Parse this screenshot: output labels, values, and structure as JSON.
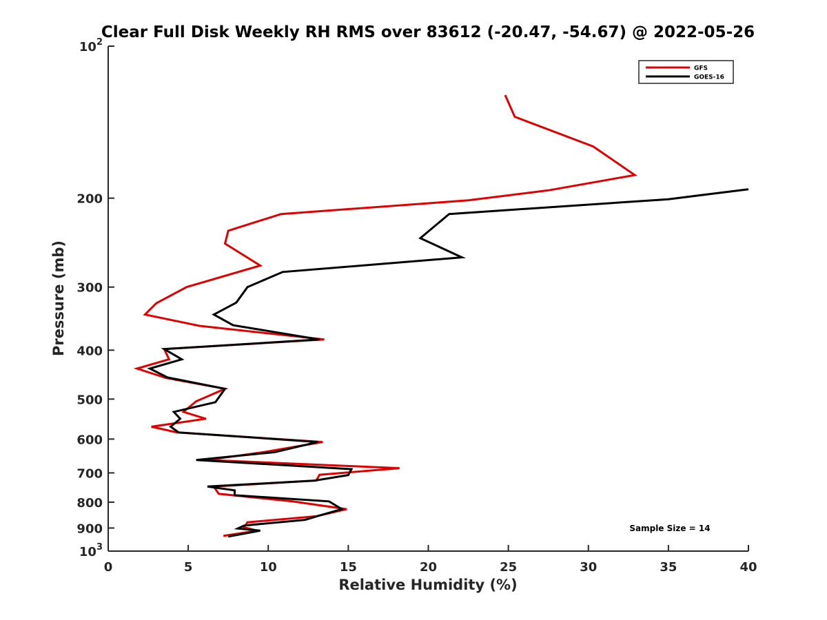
{
  "chart_data": {
    "type": "line",
    "title": "Clear Full Disk Weekly RH RMS over 83612 (-20.47, -54.67) @ 2022-05-26",
    "xlabel": "Relative Humidity (%)",
    "ylabel": "Pressure (mb)",
    "xlim": [
      0,
      40
    ],
    "ylim": [
      100,
      1000
    ],
    "y_scale": "log",
    "y_reversed": true,
    "x_ticks": [
      {
        "value": 0,
        "label": "0"
      },
      {
        "value": 5,
        "label": "5"
      },
      {
        "value": 10,
        "label": "10"
      },
      {
        "value": 15,
        "label": "15"
      },
      {
        "value": 20,
        "label": "20"
      },
      {
        "value": 25,
        "label": "25"
      },
      {
        "value": 30,
        "label": "30"
      },
      {
        "value": 35,
        "label": "35"
      },
      {
        "value": 40,
        "label": "40"
      }
    ],
    "y_ticks": [
      {
        "value": 100,
        "base": "10",
        "exp": "2"
      },
      {
        "value": 200,
        "label": "200"
      },
      {
        "value": 300,
        "label": "300"
      },
      {
        "value": 400,
        "label": "400"
      },
      {
        "value": 500,
        "label": "500"
      },
      {
        "value": 600,
        "label": "600"
      },
      {
        "value": 700,
        "label": "700"
      },
      {
        "value": 800,
        "label": "800"
      },
      {
        "value": 900,
        "label": "900"
      },
      {
        "value": 1000,
        "base": "10",
        "exp": "3"
      }
    ],
    "legend_position": "top-right",
    "grid": false,
    "annotation": "Sample Size = 14",
    "series": [
      {
        "name": "GFS",
        "color": "#e00000",
        "points": [
          [
            24.8,
            125
          ],
          [
            25.4,
            138
          ],
          [
            30.3,
            158
          ],
          [
            32.9,
            180
          ],
          [
            27.5,
            193
          ],
          [
            22.5,
            202
          ],
          [
            10.8,
            215
          ],
          [
            7.5,
            232
          ],
          [
            7.3,
            246
          ],
          [
            9.5,
            272
          ],
          [
            4.9,
            300
          ],
          [
            3.0,
            323
          ],
          [
            2.3,
            340
          ],
          [
            5.7,
            358
          ],
          [
            13.5,
            381
          ],
          [
            3.5,
            398
          ],
          [
            3.8,
            417
          ],
          [
            1.8,
            435
          ],
          [
            3.6,
            454
          ],
          [
            7.3,
            477
          ],
          [
            5.5,
            505
          ],
          [
            4.7,
            530
          ],
          [
            6.1,
            547
          ],
          [
            2.7,
            567
          ],
          [
            4.3,
            582
          ],
          [
            13.4,
            608
          ],
          [
            9.7,
            637
          ],
          [
            6.2,
            660
          ],
          [
            18.2,
            685
          ],
          [
            13.2,
            706
          ],
          [
            13.0,
            725
          ],
          [
            6.6,
            745
          ],
          [
            6.9,
            770
          ],
          [
            11.5,
            797
          ],
          [
            14.9,
            826
          ],
          [
            13.0,
            853
          ],
          [
            8.7,
            877
          ],
          [
            8.5,
            897
          ],
          [
            9.3,
            911
          ],
          [
            7.2,
            933
          ]
        ]
      },
      {
        "name": "GOES-16",
        "color": "#000000",
        "points": [
          [
            40.0,
            192
          ],
          [
            35.0,
            201
          ],
          [
            21.3,
            215
          ],
          [
            19.5,
            240
          ],
          [
            22.1,
            262
          ],
          [
            10.9,
            280
          ],
          [
            8.7,
            300
          ],
          [
            8.0,
            322
          ],
          [
            6.6,
            340
          ],
          [
            7.8,
            357
          ],
          [
            13.2,
            381
          ],
          [
            3.5,
            398
          ],
          [
            4.6,
            417
          ],
          [
            2.6,
            435
          ],
          [
            3.7,
            453
          ],
          [
            7.3,
            477
          ],
          [
            6.7,
            507
          ],
          [
            4.1,
            530
          ],
          [
            4.5,
            547
          ],
          [
            3.9,
            567
          ],
          [
            4.4,
            582
          ],
          [
            13.1,
            608
          ],
          [
            10.4,
            637
          ],
          [
            5.5,
            660
          ],
          [
            15.2,
            688
          ],
          [
            15.0,
            707
          ],
          [
            12.9,
            725
          ],
          [
            6.2,
            745
          ],
          [
            7.9,
            758
          ],
          [
            7.9,
            775
          ],
          [
            13.8,
            797
          ],
          [
            14.6,
            826
          ],
          [
            13.2,
            850
          ],
          [
            12.3,
            867
          ],
          [
            8.5,
            890
          ],
          [
            8.1,
            902
          ],
          [
            9.5,
            911
          ],
          [
            7.5,
            936
          ]
        ]
      }
    ]
  }
}
